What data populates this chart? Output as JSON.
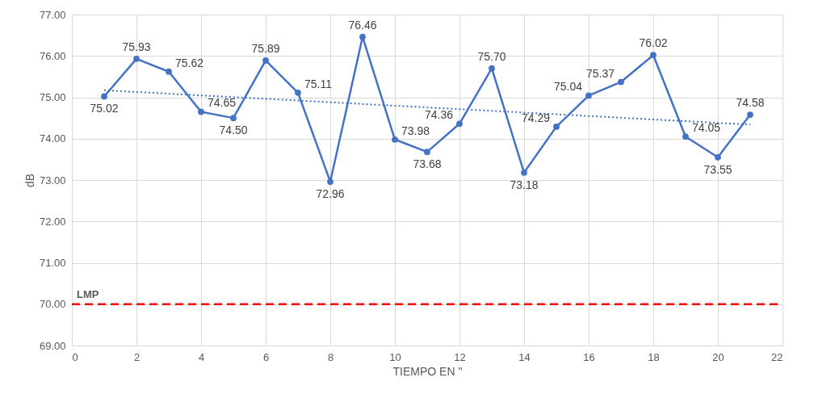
{
  "chart_data": {
    "type": "line",
    "xlabel": "TIEMPO EN \"",
    "ylabel": "dB",
    "x": [
      1,
      2,
      3,
      4,
      5,
      6,
      7,
      8,
      9,
      10,
      11,
      12,
      13,
      14,
      15,
      16,
      17,
      18,
      19,
      20,
      21
    ],
    "series": [
      {
        "type": "line",
        "color": "#4472c4",
        "marker": "circle",
        "line_style": "solid",
        "values": [
          75.02,
          75.93,
          75.62,
          74.65,
          74.5,
          75.89,
          75.11,
          72.96,
          76.46,
          73.98,
          73.68,
          74.36,
          75.7,
          73.18,
          74.29,
          75.04,
          75.37,
          76.02,
          74.05,
          73.55,
          74.58
        ],
        "value_labels": [
          "75.02",
          "75.93",
          "75.62",
          "74.65",
          "74.50",
          "75.89",
          "75.11",
          "72.96",
          "76.46",
          "73.98",
          "73.68",
          "74.36",
          "75.70",
          "73.18",
          "74.29",
          "75.04",
          "75.37",
          "76.02",
          "74.05",
          "73.55",
          "74.58"
        ]
      },
      {
        "type": "line",
        "color": "#4472c4",
        "marker": "none",
        "line_style": "dotted",
        "x": [
          1,
          21
        ],
        "values": [
          75.17,
          74.34
        ]
      }
    ],
    "ref_lines": [
      {
        "axis": "y",
        "value": 70,
        "label": "LMP",
        "color": "#ff0000",
        "line_style": "dashed"
      }
    ],
    "xlim": [
      0,
      22
    ],
    "xticks": [
      0,
      2,
      4,
      6,
      8,
      10,
      12,
      14,
      16,
      18,
      20,
      22
    ],
    "ylim": [
      69,
      77
    ],
    "yticks": [
      {
        "value": 69,
        "label": "69.00"
      },
      {
        "value": 70,
        "label": "70.00"
      },
      {
        "value": 71,
        "label": "71.00"
      },
      {
        "value": 72,
        "label": "72.00"
      },
      {
        "value": 73,
        "label": "73.00"
      },
      {
        "value": 74,
        "label": "74.00"
      },
      {
        "value": 75,
        "label": "75.00"
      },
      {
        "value": 76,
        "label": "76.00"
      },
      {
        "value": 77,
        "label": "77.00"
      }
    ],
    "grid": true
  }
}
